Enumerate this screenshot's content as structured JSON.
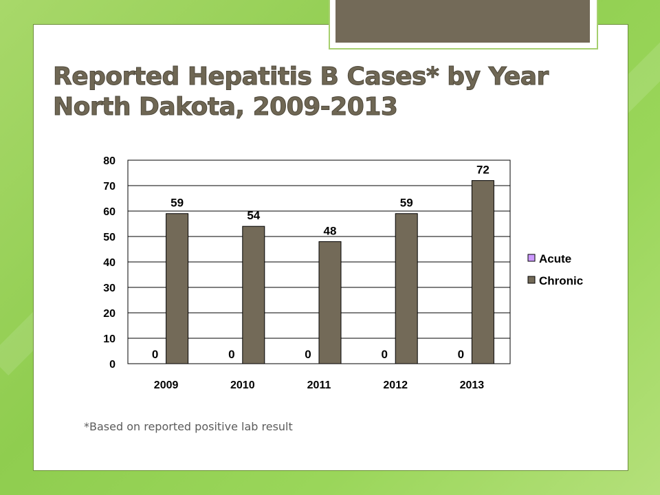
{
  "slide": {
    "title_line1": "Reported Hepatitis B Cases* by Year",
    "title_line2": "North Dakota, 2009-2013",
    "footnote": "*Based on reported positive lab result"
  },
  "colors": {
    "background": "#96d058",
    "title": "#6f6754",
    "acute": "#cc99ff",
    "chronic": "#736a58"
  },
  "chart_data": {
    "type": "bar",
    "categories": [
      "2009",
      "2010",
      "2011",
      "2012",
      "2013"
    ],
    "series": [
      {
        "name": "Acute",
        "values": [
          0,
          0,
          0,
          0,
          0
        ]
      },
      {
        "name": "Chronic",
        "values": [
          59,
          54,
          48,
          59,
          72
        ]
      }
    ],
    "ylim": [
      0,
      80
    ],
    "yticks": [
      0,
      10,
      20,
      30,
      40,
      50,
      60,
      70,
      80
    ],
    "grid": true,
    "legend": "right"
  }
}
